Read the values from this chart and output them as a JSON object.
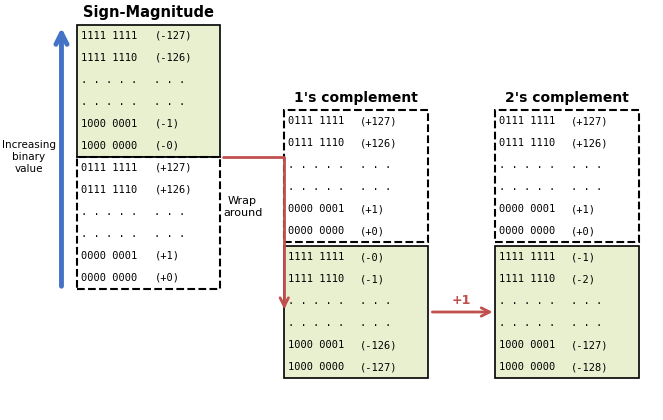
{
  "title_sm": "Sign-Magnitude",
  "title_1s": "1's complement",
  "title_2s": "2's complement",
  "bg_color": "#ffffff",
  "box_green": "#e8f0d0",
  "box_white": "#ffffff",
  "arrow_blue": "#4472c4",
  "arrow_red": "#c0504d",
  "sm_top_rows": [
    [
      "1111 1111",
      "(-127)"
    ],
    [
      "1111 1110",
      "(-126)"
    ],
    [
      ". . . . .",
      ". . ."
    ],
    [
      ". . . . .",
      ". . ."
    ],
    [
      "1000 0001",
      "(-1)"
    ],
    [
      "1000 0000",
      "(-0)"
    ]
  ],
  "sm_bot_rows": [
    [
      "0111 1111",
      "(+127)"
    ],
    [
      "0111 1110",
      "(+126)"
    ],
    [
      ". . . . .",
      ". . ."
    ],
    [
      ". . . . .",
      ". . ."
    ],
    [
      "0000 0001",
      "(+1)"
    ],
    [
      "0000 0000",
      "(+0)"
    ]
  ],
  "ones_top_rows": [
    [
      "0111 1111",
      "(+127)"
    ],
    [
      "0111 1110",
      "(+126)"
    ],
    [
      ". . . . .",
      ". . ."
    ],
    [
      ". . . . .",
      ". . ."
    ],
    [
      "0000 0001",
      "(+1)"
    ],
    [
      "0000 0000",
      "(+0)"
    ]
  ],
  "ones_bot_rows": [
    [
      "1111 1111",
      "(-0)"
    ],
    [
      "1111 1110",
      "(-1)"
    ],
    [
      ". . . . .",
      ". . ."
    ],
    [
      ". . . . .",
      ". . ."
    ],
    [
      "1000 0001",
      "(-126)"
    ],
    [
      "1000 0000",
      "(-127)"
    ]
  ],
  "twos_top_rows": [
    [
      "0111 1111",
      "(+127)"
    ],
    [
      "0111 1110",
      "(+126)"
    ],
    [
      ". . . . .",
      ". . ."
    ],
    [
      ". . . . .",
      ". . ."
    ],
    [
      "0000 0001",
      "(+1)"
    ],
    [
      "0000 0000",
      "(+0)"
    ]
  ],
  "twos_bot_rows": [
    [
      "1111 1111",
      "(-1)"
    ],
    [
      "1111 1110",
      "(-2)"
    ],
    [
      ". . . . .",
      ". . ."
    ],
    [
      ". . . . .",
      ". . ."
    ],
    [
      "1000 0001",
      "(-127)"
    ],
    [
      "1000 0000",
      "(-128)"
    ]
  ],
  "label_increasing": "Increasing\nbinary\nvalue",
  "label_wrap": "Wrap\naround",
  "label_plus1": "+1"
}
